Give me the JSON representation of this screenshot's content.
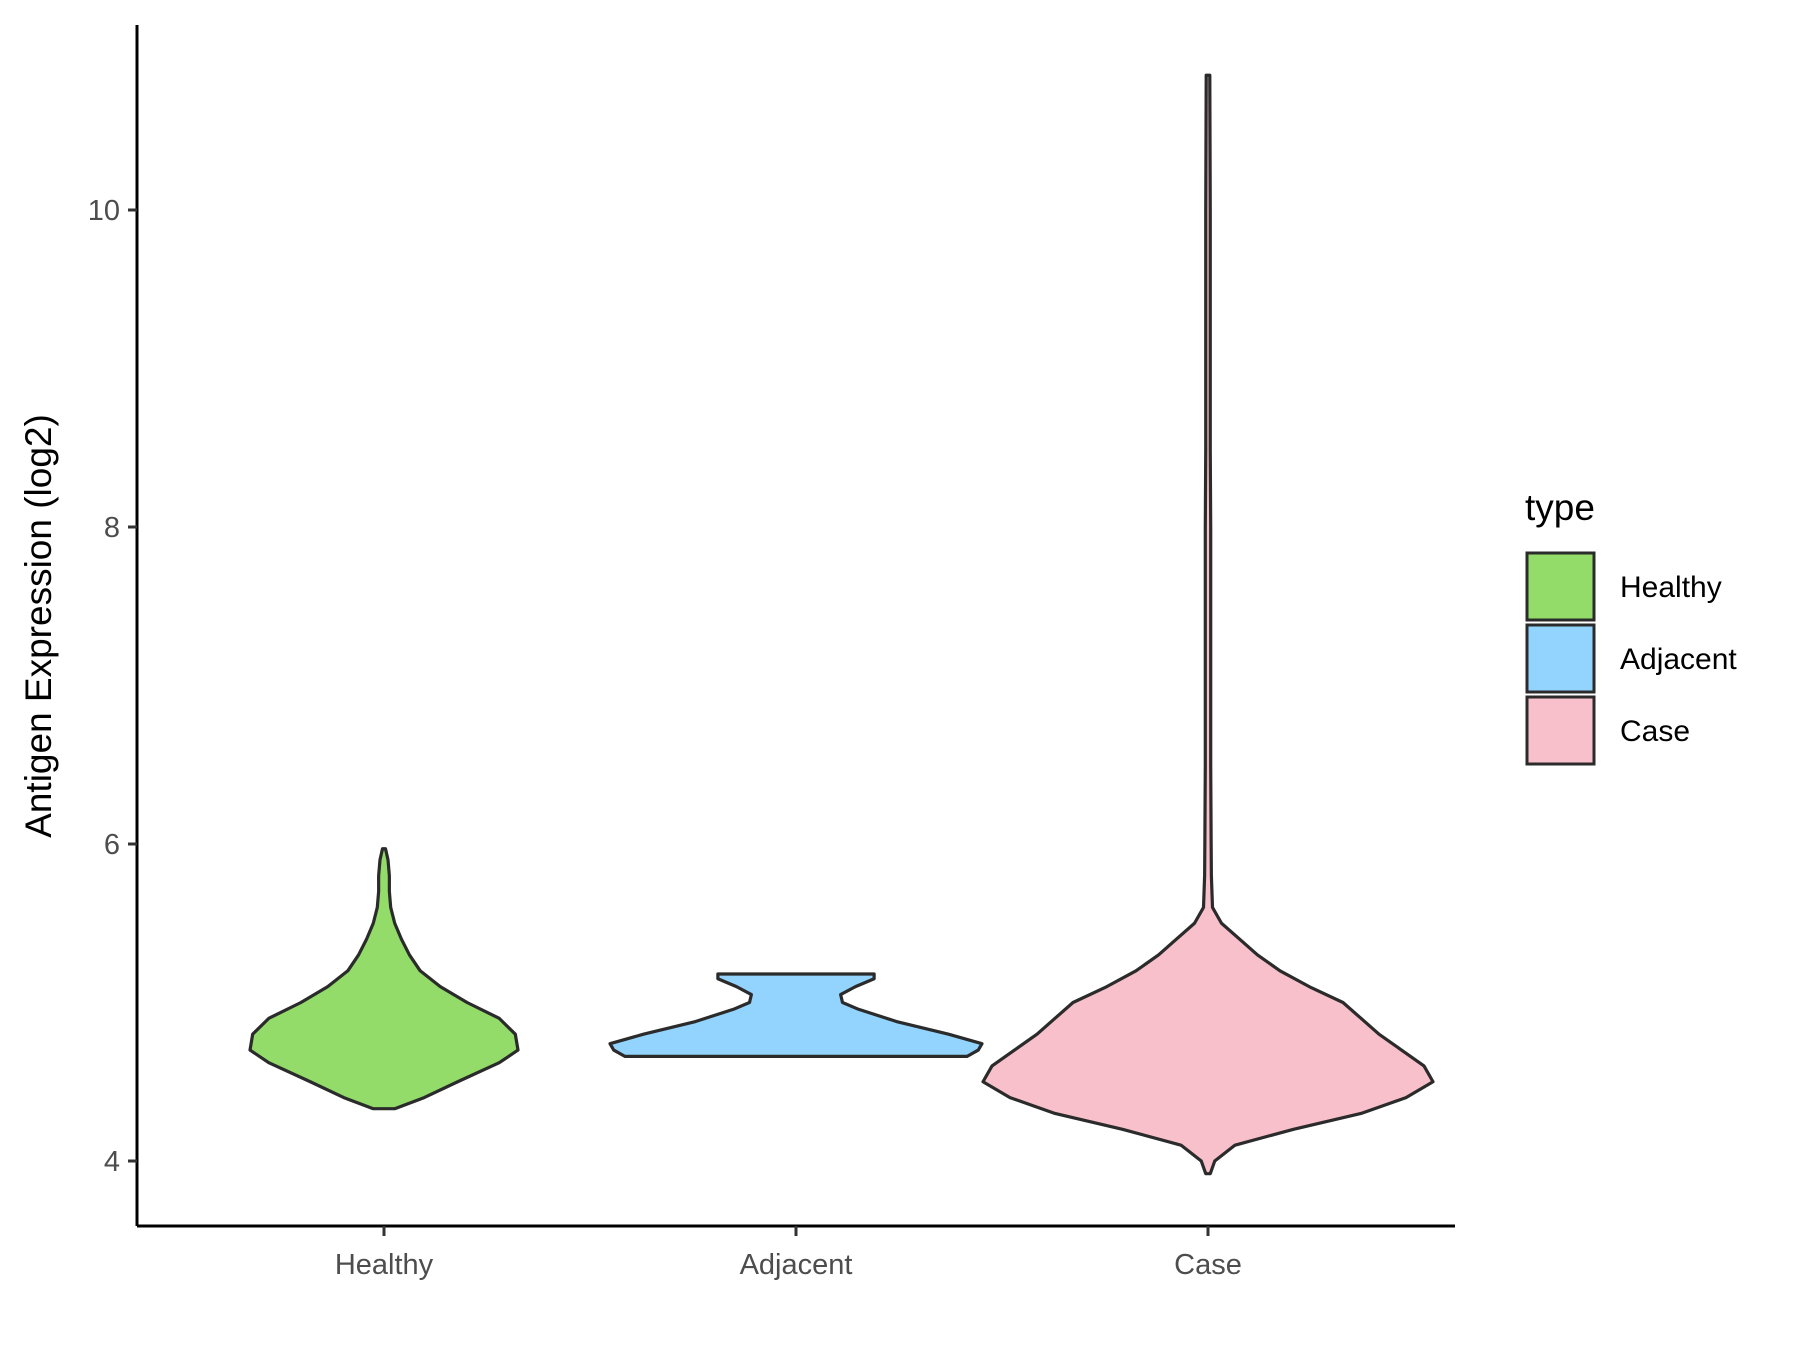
{
  "chart_data": {
    "type": "violin",
    "categories": [
      "Healthy",
      "Adjacent",
      "Case"
    ],
    "xlabel": "",
    "ylabel": "Antigen Expression (log2)",
    "ylim": [
      3.6,
      11.2
    ],
    "yticks": [
      4,
      6,
      8,
      10
    ],
    "grid": false,
    "legend": {
      "title": "type",
      "position": "right",
      "entries": [
        "Healthy",
        "Adjacent",
        "Case"
      ]
    },
    "colors": {
      "Healthy": "#93dc6a",
      "Adjacent": "#93d4ff",
      "Case": "#f8c0cb",
      "outline": "#2b2b2b"
    },
    "series": [
      {
        "category": "Healthy",
        "min": 4.33,
        "max": 5.97,
        "density_profile": [
          [
            4.33,
            0.08
          ],
          [
            4.4,
            0.3
          ],
          [
            4.5,
            0.55
          ],
          [
            4.62,
            0.86
          ],
          [
            4.7,
            1.0
          ],
          [
            4.8,
            0.98
          ],
          [
            4.9,
            0.86
          ],
          [
            5.0,
            0.62
          ],
          [
            5.1,
            0.42
          ],
          [
            5.2,
            0.27
          ],
          [
            5.3,
            0.19
          ],
          [
            5.4,
            0.13
          ],
          [
            5.5,
            0.08
          ],
          [
            5.6,
            0.05
          ],
          [
            5.7,
            0.04
          ],
          [
            5.8,
            0.04
          ],
          [
            5.9,
            0.03
          ],
          [
            5.97,
            0.01
          ]
        ]
      },
      {
        "category": "Adjacent",
        "min": 4.66,
        "max": 5.18,
        "density_profile": [
          [
            4.66,
            0.92
          ],
          [
            4.7,
            0.98
          ],
          [
            4.74,
            1.0
          ],
          [
            4.8,
            0.82
          ],
          [
            4.88,
            0.54
          ],
          [
            4.96,
            0.33
          ],
          [
            5.0,
            0.25
          ],
          [
            5.05,
            0.24
          ],
          [
            5.1,
            0.32
          ],
          [
            5.15,
            0.42
          ],
          [
            5.18,
            0.42
          ]
        ]
      },
      {
        "category": "Case",
        "min": 3.92,
        "max": 10.85,
        "density_profile": [
          [
            3.92,
            0.01
          ],
          [
            4.0,
            0.03
          ],
          [
            4.1,
            0.12
          ],
          [
            4.2,
            0.38
          ],
          [
            4.3,
            0.68
          ],
          [
            4.4,
            0.88
          ],
          [
            4.5,
            1.0
          ],
          [
            4.6,
            0.96
          ],
          [
            4.7,
            0.86
          ],
          [
            4.8,
            0.76
          ],
          [
            4.9,
            0.68
          ],
          [
            5.0,
            0.6
          ],
          [
            5.1,
            0.45
          ],
          [
            5.2,
            0.32
          ],
          [
            5.3,
            0.22
          ],
          [
            5.4,
            0.14
          ],
          [
            5.5,
            0.06
          ],
          [
            5.6,
            0.02
          ],
          [
            5.8,
            0.015
          ],
          [
            6.0,
            0.014
          ],
          [
            6.5,
            0.012
          ],
          [
            7.0,
            0.012
          ],
          [
            7.5,
            0.012
          ],
          [
            8.0,
            0.012
          ],
          [
            8.5,
            0.01
          ],
          [
            9.0,
            0.01
          ],
          [
            10.0,
            0.01
          ],
          [
            10.85,
            0.008
          ]
        ]
      }
    ]
  }
}
